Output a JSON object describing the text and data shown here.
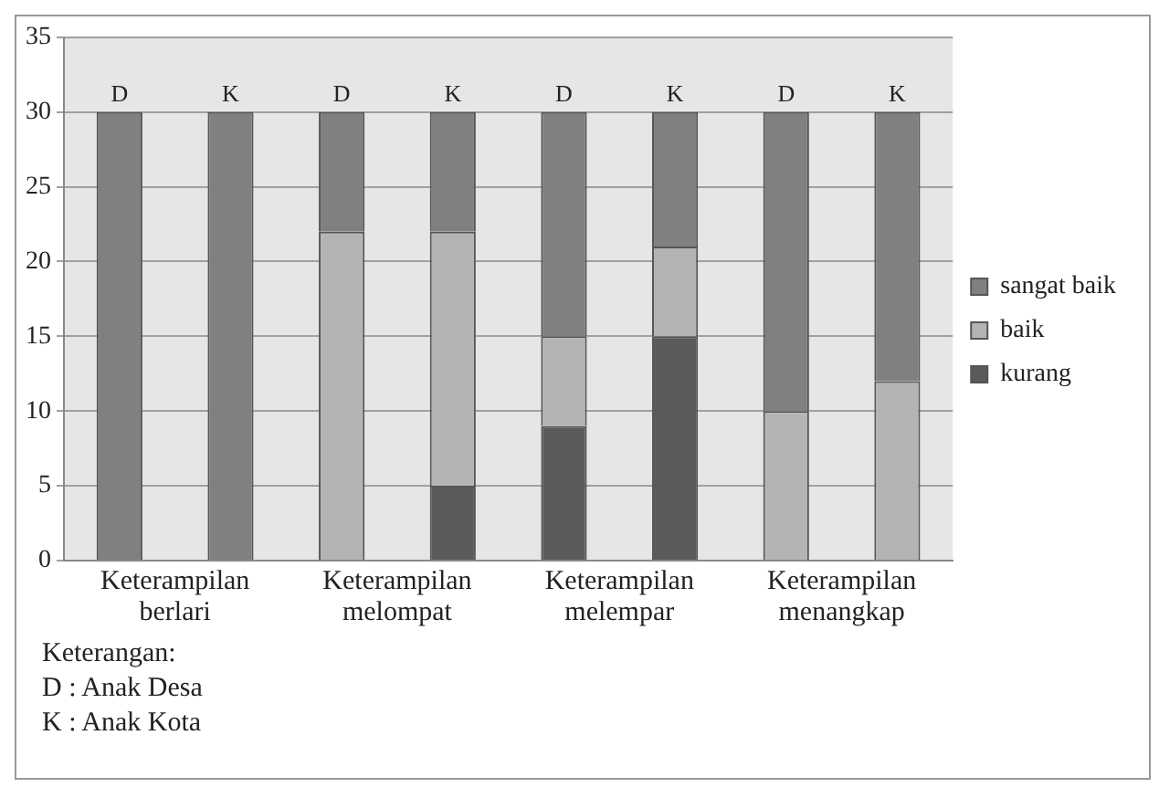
{
  "chart_data": {
    "type": "bar",
    "stacked": true,
    "categories": [
      "D",
      "K",
      "D",
      "K",
      "D",
      "K",
      "D",
      "K"
    ],
    "series": [
      {
        "name": "kurang",
        "color": "#5a5a5a",
        "values": [
          0,
          0,
          0,
          5,
          9,
          15,
          0,
          0
        ]
      },
      {
        "name": "baik",
        "color": "#b4b4b4",
        "values": [
          0,
          0,
          22,
          17,
          6,
          6,
          10,
          12
        ]
      },
      {
        "name": "sangat baik",
        "color": "#808080",
        "values": [
          30,
          30,
          8,
          8,
          15,
          9,
          20,
          18
        ]
      }
    ],
    "ylim": [
      0,
      35
    ],
    "yticks": [
      0,
      5,
      10,
      15,
      20,
      25,
      30,
      35
    ],
    "grid": "y",
    "legend": "right",
    "annotations": [
      "Keterampilan berlari",
      "Keterampilan melompat",
      "Keterampilan melempar",
      "Keterampilan menangkap",
      "Keterangan:",
      "D : Anak Desa",
      "K : Anak Kota"
    ]
  }
}
